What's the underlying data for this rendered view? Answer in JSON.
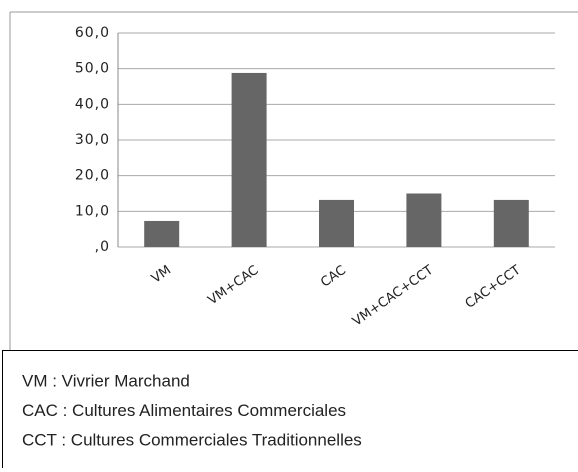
{
  "chart_data": {
    "type": "bar",
    "categories": [
      "VM",
      "VM+CAC",
      "CAC",
      "VM+CAC+CCT",
      "CAC+CCT"
    ],
    "values": [
      7.3,
      48.8,
      13.2,
      15.0,
      13.2
    ],
    "color": "#666666",
    "ylim": [
      0,
      60
    ],
    "yticks": [
      {
        "value": 0,
        "label": ",0"
      },
      {
        "value": 10,
        "label": "10,0"
      },
      {
        "value": 20,
        "label": "20,0"
      },
      {
        "value": 30,
        "label": "30,0"
      },
      {
        "value": 40,
        "label": "40,0"
      },
      {
        "value": 50,
        "label": "50,0"
      },
      {
        "value": 60,
        "label": "60,0"
      }
    ],
    "grid": true,
    "notes": [
      "VM :   Vivrier Marchand",
      "CAC : Cultures Alimentaires Commerciales",
      "CCT : Cultures Commerciales Traditionnelles"
    ]
  }
}
